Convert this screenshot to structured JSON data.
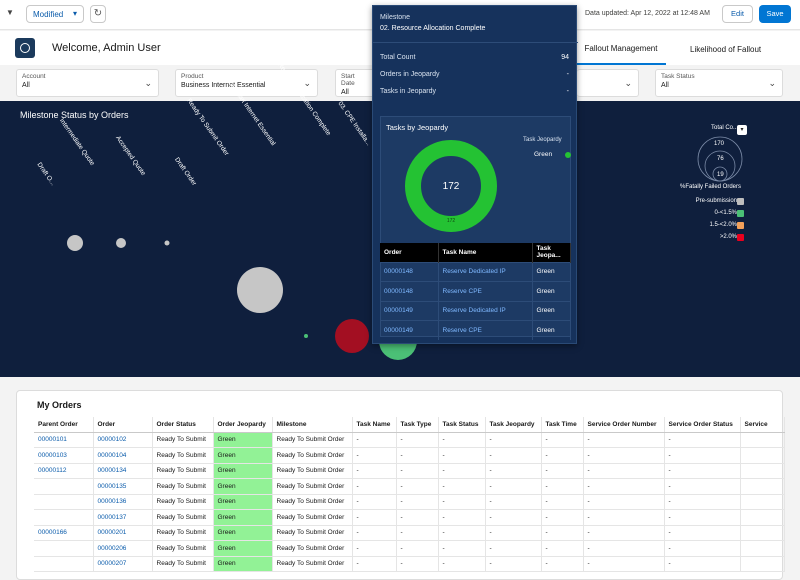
{
  "topbar": {
    "view_label": "Modified",
    "updated_text": "Data updated: Apr 12, 2022 at 12:48 AM",
    "edit_label": "Edit",
    "save_label": "Save"
  },
  "header": {
    "welcome": "Welcome, Admin User",
    "tabs": [
      "Fallout Management",
      "Likelihood of Fallout"
    ]
  },
  "filters": [
    {
      "label": "Account",
      "value": "All"
    },
    {
      "label": "Product",
      "value": "Business Internet Essential"
    },
    {
      "label": "Start Date",
      "value": "All"
    },
    {
      "label": "Task Status",
      "value": "All"
    }
  ],
  "milestone_chart": {
    "title": "Milestone Status by Orders",
    "x_labels": [
      "Draft O...",
      "Intermediate Quote",
      "Accepted Quote",
      "Draft Order",
      "Ready To Submit Order",
      "01. Start Internet Essential",
      "02. Resource Allocation Complete",
      "03. CPE Installa..."
    ],
    "legend": {
      "size_title": "Total Co...",
      "size_values": [
        "170",
        "76",
        "19"
      ],
      "color_title": "%Fatally Failed Orders",
      "items": [
        {
          "label": "Pre-submission",
          "color": "#bdbdbd"
        },
        {
          "label": "0-<1.5%",
          "color": "#4bc076"
        },
        {
          "label": "1.5-<2.0%",
          "color": "#f2a05a"
        },
        {
          "label": ">2.0%",
          "color": "#ea001e"
        }
      ]
    }
  },
  "popover": {
    "milestone_label": "Milestone",
    "milestone_value": "02. Resource Allocation Complete",
    "rows": [
      {
        "label": "Total Count",
        "value": "94"
      },
      {
        "label": "Orders in Jeopardy",
        "value": "-"
      },
      {
        "label": "Tasks in Jeopardy",
        "value": "-"
      }
    ],
    "donut": {
      "title": "Tasks by Jeopardy",
      "legend_title": "Task Jeopardy",
      "legend_item": "Green",
      "total": "172",
      "slice_label": "172"
    },
    "table": {
      "headers": [
        "Order",
        "Task Name",
        "Task Jeopa..."
      ],
      "rows": [
        [
          "00000148",
          "Reserve Dedicated IP",
          "Green"
        ],
        [
          "00000148",
          "Reserve CPE",
          "Green"
        ],
        [
          "00000149",
          "Reserve Dedicated IP",
          "Green"
        ],
        [
          "00000149",
          "Reserve CPE",
          "Green"
        ]
      ]
    }
  },
  "orders": {
    "title": "My Orders",
    "headers": [
      "Parent Order",
      "Order",
      "Order Status",
      "Order Jeopardy",
      "Milestone",
      "Task Name",
      "Task Type",
      "Task Status",
      "Task Jeopardy",
      "Task Time",
      "Service Order Number",
      "Service Order Status",
      "Service"
    ],
    "rows": [
      [
        "00000101",
        "00000102",
        "Ready To Submit",
        "Green",
        "Ready To Submit Order",
        "-",
        "-",
        "-",
        "-",
        "-",
        "-",
        "-",
        ""
      ],
      [
        "00000103",
        "00000104",
        "Ready To Submit",
        "Green",
        "Ready To Submit Order",
        "-",
        "-",
        "-",
        "-",
        "-",
        "-",
        "-",
        ""
      ],
      [
        "00000112",
        "00000134",
        "Ready To Submit",
        "Green",
        "Ready To Submit Order",
        "-",
        "-",
        "-",
        "-",
        "-",
        "-",
        "-",
        ""
      ],
      [
        "",
        "00000135",
        "Ready To Submit",
        "Green",
        "Ready To Submit Order",
        "-",
        "-",
        "-",
        "-",
        "-",
        "-",
        "-",
        ""
      ],
      [
        "",
        "00000136",
        "Ready To Submit",
        "Green",
        "Ready To Submit Order",
        "-",
        "-",
        "-",
        "-",
        "-",
        "-",
        "-",
        ""
      ],
      [
        "",
        "00000137",
        "Ready To Submit",
        "Green",
        "Ready To Submit Order",
        "-",
        "-",
        "-",
        "-",
        "-",
        "-",
        "-",
        ""
      ],
      [
        "00000166",
        "00000201",
        "Ready To Submit",
        "Green",
        "Ready To Submit Order",
        "-",
        "-",
        "-",
        "-",
        "-",
        "-",
        "-",
        ""
      ],
      [
        "",
        "00000206",
        "Ready To Submit",
        "Green",
        "Ready To Submit Order",
        "-",
        "-",
        "-",
        "-",
        "-",
        "-",
        "-",
        ""
      ],
      [
        "",
        "00000207",
        "Ready To Submit",
        "Green",
        "Ready To Submit Order",
        "-",
        "-",
        "-",
        "-",
        "-",
        "-",
        "-",
        ""
      ]
    ]
  }
}
